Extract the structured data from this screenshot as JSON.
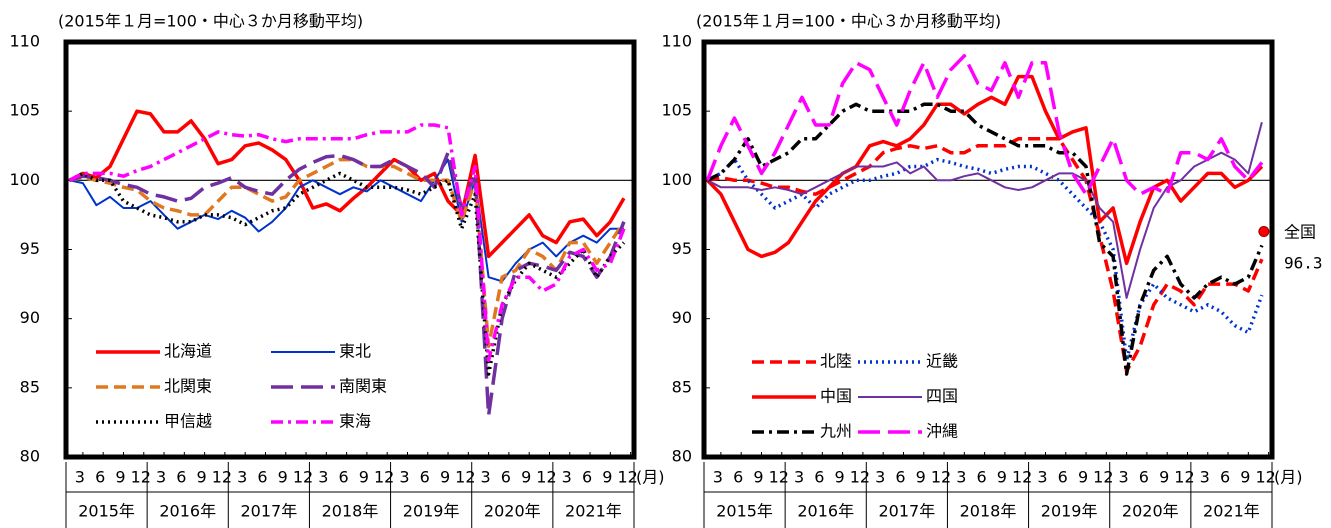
{
  "chart_data": [
    {
      "type": "line",
      "title": "(2015年１月=100・中心３か月移動平均)",
      "xlabel": "(月)",
      "x": [
        1,
        3,
        5,
        7,
        9,
        11,
        13,
        15,
        17,
        19,
        21,
        23,
        25,
        27,
        29,
        31,
        33,
        35,
        37,
        39,
        41,
        43,
        45,
        47,
        49,
        51,
        53,
        55,
        57,
        59,
        61,
        63,
        65,
        67,
        69,
        71,
        73,
        75,
        77,
        79,
        81,
        83
      ],
      "xlim": [
        0.5,
        84.5
      ],
      "ylim": [
        80,
        110
      ],
      "yticks": [
        80,
        85,
        90,
        95,
        100,
        105,
        110
      ],
      "hline": 100,
      "xticks": [
        {
          "value": 3,
          "label": "3"
        },
        {
          "value": 6,
          "label": "6"
        },
        {
          "value": 9,
          "label": "9"
        },
        {
          "value": 12,
          "label": "12"
        },
        {
          "value": 15,
          "label": "3"
        },
        {
          "value": 18,
          "label": "6"
        },
        {
          "value": 21,
          "label": "9"
        },
        {
          "value": 24,
          "label": "12"
        },
        {
          "value": 27,
          "label": "3"
        },
        {
          "value": 30,
          "label": "6"
        },
        {
          "value": 33,
          "label": "9"
        },
        {
          "value": 36,
          "label": "12"
        },
        {
          "value": 39,
          "label": "3"
        },
        {
          "value": 42,
          "label": "6"
        },
        {
          "value": 45,
          "label": "9"
        },
        {
          "value": 48,
          "label": "12"
        },
        {
          "value": 51,
          "label": "3"
        },
        {
          "value": 54,
          "label": "6"
        },
        {
          "value": 57,
          "label": "9"
        },
        {
          "value": 60,
          "label": "12"
        },
        {
          "value": 63,
          "label": "3"
        },
        {
          "value": 66,
          "label": "6"
        },
        {
          "value": 69,
          "label": "9"
        },
        {
          "value": 72,
          "label": "12"
        },
        {
          "value": 75,
          "label": "3"
        },
        {
          "value": 78,
          "label": "6"
        },
        {
          "value": 81,
          "label": "9"
        },
        {
          "value": 84,
          "label": "12"
        }
      ],
      "year_labels": [
        "2015年",
        "2016年",
        "2017年",
        "2018年",
        "2019年",
        "2020年",
        "2021年"
      ],
      "legend": "lower left",
      "series": [
        {
          "name": "北海道",
          "color": "#ff0000",
          "style": "solid",
          "values": [
            100,
            100.5,
            100.2,
            101,
            103,
            105,
            104.8,
            103.5,
            103.5,
            104.3,
            103,
            101.2,
            101.5,
            102.5,
            102.7,
            102.2,
            101.5,
            100,
            98,
            98.3,
            97.8,
            98.7,
            99.5,
            100.5,
            101.5,
            101,
            100,
            100.5,
            98.5,
            97.5,
            101.8,
            94.5,
            95.5,
            96.5,
            97.5,
            96,
            95.5,
            97,
            97.2,
            96,
            97,
            98.7
          ]
        },
        {
          "name": "東北",
          "color": "#0033cc",
          "style": "thin",
          "values": [
            100,
            99.8,
            98.2,
            98.8,
            98,
            98,
            98.5,
            97.5,
            96.5,
            97,
            97.5,
            97.2,
            97.8,
            97.3,
            96.3,
            97,
            98,
            99.5,
            100,
            99.5,
            99,
            99.5,
            99.2,
            100,
            99.5,
            99,
            98.5,
            100,
            101.5,
            97,
            100,
            93,
            92.7,
            94,
            95,
            95.5,
            94.5,
            95.5,
            96,
            95.5,
            96.5,
            96.5
          ]
        },
        {
          "name": "北関東",
          "color": "#e07820",
          "style": "dashed",
          "values": [
            100,
            100.2,
            100,
            99.8,
            99.5,
            99.3,
            98.5,
            98,
            97.8,
            97.5,
            97.5,
            98.5,
            99.5,
            99.5,
            99,
            98.5,
            98.8,
            100,
            100.5,
            101,
            101.5,
            101.5,
            101,
            101,
            101,
            100.5,
            100,
            100,
            100,
            97,
            100,
            88,
            93,
            93.5,
            95,
            94.5,
            93.5,
            95.5,
            95.5,
            94,
            95.5,
            97
          ]
        },
        {
          "name": "南関東",
          "color": "#7030a0",
          "style": "longdash",
          "values": [
            100,
            100.3,
            100.2,
            100,
            99.7,
            99.5,
            99,
            98.8,
            98.5,
            98.7,
            99.5,
            99.8,
            100.2,
            99.5,
            99.2,
            99,
            100,
            100.8,
            101.3,
            101.7,
            101.8,
            101.5,
            101,
            101,
            101.5,
            101,
            100.5,
            99.5,
            102,
            98,
            100.5,
            83,
            90,
            93.5,
            94,
            93.8,
            93.5,
            94.8,
            94.5,
            93,
            94.5,
            97
          ]
        },
        {
          "name": "甲信越",
          "color": "#000000",
          "style": "dotted",
          "values": [
            100,
            100.5,
            100,
            100,
            98.5,
            98,
            97.5,
            97.3,
            97,
            97,
            97.5,
            97.5,
            97.3,
            96.8,
            97.3,
            97.8,
            98,
            99,
            99.5,
            100,
            100.5,
            100,
            99.5,
            99.5,
            99.5,
            99.3,
            99,
            99.5,
            100,
            96.5,
            99,
            86,
            91,
            92.8,
            94,
            93.5,
            93,
            94,
            95,
            93,
            94.5,
            95.5
          ]
        },
        {
          "name": "東海",
          "color": "#ff00ff",
          "style": "dashdot",
          "values": [
            100,
            100.5,
            100.5,
            100.5,
            100.3,
            100.7,
            101,
            101.5,
            102,
            102.5,
            103,
            103.5,
            103.3,
            103.2,
            103.3,
            103,
            102.8,
            103,
            103,
            103,
            103,
            103,
            103.3,
            103.5,
            103.5,
            103.5,
            104,
            104,
            103.8,
            97.5,
            101,
            87,
            91,
            93,
            93,
            92,
            92.5,
            94.5,
            95,
            93.5,
            94,
            96.5
          ]
        }
      ]
    },
    {
      "type": "line",
      "title": "(2015年１月=100・中心３か月移動平均)",
      "xlabel": "(月)",
      "x": [
        1,
        3,
        5,
        7,
        9,
        11,
        13,
        15,
        17,
        19,
        21,
        23,
        25,
        27,
        29,
        31,
        33,
        35,
        37,
        39,
        41,
        43,
        45,
        47,
        49,
        51,
        53,
        55,
        57,
        59,
        61,
        63,
        65,
        67,
        69,
        71,
        73,
        75,
        77,
        79,
        81,
        83
      ],
      "xlim": [
        0.5,
        84.5
      ],
      "ylim": [
        80,
        110
      ],
      "yticks": [
        80,
        85,
        90,
        95,
        100,
        105,
        110
      ],
      "hline": 100,
      "xticks": [
        {
          "value": 3,
          "label": "3"
        },
        {
          "value": 6,
          "label": "6"
        },
        {
          "value": 9,
          "label": "9"
        },
        {
          "value": 12,
          "label": "12"
        },
        {
          "value": 15,
          "label": "3"
        },
        {
          "value": 18,
          "label": "6"
        },
        {
          "value": 21,
          "label": "9"
        },
        {
          "value": 24,
          "label": "12"
        },
        {
          "value": 27,
          "label": "3"
        },
        {
          "value": 30,
          "label": "6"
        },
        {
          "value": 33,
          "label": "9"
        },
        {
          "value": 36,
          "label": "12"
        },
        {
          "value": 39,
          "label": "3"
        },
        {
          "value": 42,
          "label": "6"
        },
        {
          "value": 45,
          "label": "9"
        },
        {
          "value": 48,
          "label": "12"
        },
        {
          "value": 51,
          "label": "3"
        },
        {
          "value": 54,
          "label": "6"
        },
        {
          "value": 57,
          "label": "9"
        },
        {
          "value": 60,
          "label": "12"
        },
        {
          "value": 63,
          "label": "3"
        },
        {
          "value": 66,
          "label": "6"
        },
        {
          "value": 69,
          "label": "9"
        },
        {
          "value": 72,
          "label": "12"
        },
        {
          "value": 75,
          "label": "3"
        },
        {
          "value": 78,
          "label": "6"
        },
        {
          "value": 81,
          "label": "9"
        },
        {
          "value": 84,
          "label": "12"
        }
      ],
      "year_labels": [
        "2015年",
        "2016年",
        "2017年",
        "2018年",
        "2019年",
        "2020年",
        "2021年"
      ],
      "legend": "lower left",
      "annotation": {
        "text": "全国",
        "value": 96.3,
        "color": "#ff0000"
      },
      "series": [
        {
          "name": "北陸",
          "color": "#ff0000",
          "style": "dashed",
          "values": [
            100,
            100.2,
            100,
            100,
            99.8,
            99.5,
            99.5,
            99.2,
            99,
            99.5,
            100,
            100.5,
            101,
            102,
            102.3,
            102.5,
            102.3,
            102.5,
            102,
            102,
            102.5,
            102.5,
            102.5,
            103,
            103,
            103,
            103,
            101.5,
            100,
            96,
            92,
            86.2,
            88,
            91,
            92.5,
            92,
            91,
            92.5,
            92.5,
            92.5,
            92,
            94.3
          ]
        },
        {
          "name": "近畿",
          "color": "#0033cc",
          "style": "dotted",
          "values": [
            100,
            100.5,
            101.5,
            100,
            99,
            98,
            98.5,
            99,
            98,
            99,
            99.5,
            100,
            100,
            100.3,
            100.5,
            101,
            101,
            101.5,
            101.3,
            101,
            100.8,
            100.5,
            100.8,
            101,
            101,
            100.5,
            100,
            99,
            98,
            97,
            95,
            87,
            91,
            92.5,
            91.5,
            91,
            90.5,
            91,
            90.5,
            89.5,
            89,
            91.7
          ]
        },
        {
          "name": "中国",
          "color": "#ff0000",
          "style": "solid",
          "values": [
            100,
            99,
            97,
            95,
            94.5,
            94.8,
            95.5,
            97,
            98.5,
            99.5,
            100.5,
            101,
            102.5,
            102.8,
            102.5,
            103,
            104,
            105.5,
            105.5,
            104.8,
            105.5,
            106,
            105.5,
            107.5,
            107.5,
            105,
            103,
            103.5,
            103.8,
            97,
            98,
            94,
            97,
            99.5,
            100,
            98.5,
            99.5,
            100.5,
            100.5,
            99.5,
            100,
            101
          ]
        },
        {
          "name": "四国",
          "color": "#7030a0",
          "style": "thin",
          "values": [
            100,
            99.5,
            99.5,
            99.5,
            99.3,
            99.5,
            99.3,
            99,
            99.5,
            100,
            100.5,
            101,
            101,
            101,
            101.3,
            100.5,
            101,
            100,
            100,
            100.3,
            100.5,
            100,
            99.5,
            99.3,
            99.5,
            100,
            100.5,
            100.5,
            100,
            98,
            97,
            91.5,
            95,
            98,
            99.5,
            100,
            101,
            101.5,
            102,
            101.5,
            100.5,
            104.2
          ]
        },
        {
          "name": "九州",
          "color": "#000000",
          "style": "dashdot",
          "values": [
            100,
            100.5,
            101.5,
            103,
            101,
            101.5,
            102,
            103,
            103,
            104,
            105,
            105.5,
            105,
            105,
            105,
            105,
            105.5,
            105.5,
            105,
            105,
            104,
            103.5,
            103,
            102.5,
            102.5,
            102.5,
            102,
            102,
            101,
            95.5,
            94.5,
            86,
            91,
            93.5,
            94.5,
            92.5,
            91.5,
            92.5,
            93,
            92.5,
            93,
            95.3
          ]
        },
        {
          "name": "沖縄",
          "color": "#ff00ff",
          "style": "longdash",
          "values": [
            100,
            102.5,
            104.5,
            102.5,
            100.5,
            102,
            104,
            106,
            104,
            104,
            107,
            108.5,
            108,
            106,
            104,
            106.5,
            108.5,
            106,
            108,
            109,
            107,
            106.5,
            108.5,
            106,
            108.5,
            108.5,
            103.5,
            100.5,
            99,
            101,
            103,
            100,
            99,
            99.5,
            99,
            102,
            102,
            101.5,
            103,
            101,
            100,
            101.3
          ]
        }
      ]
    }
  ]
}
